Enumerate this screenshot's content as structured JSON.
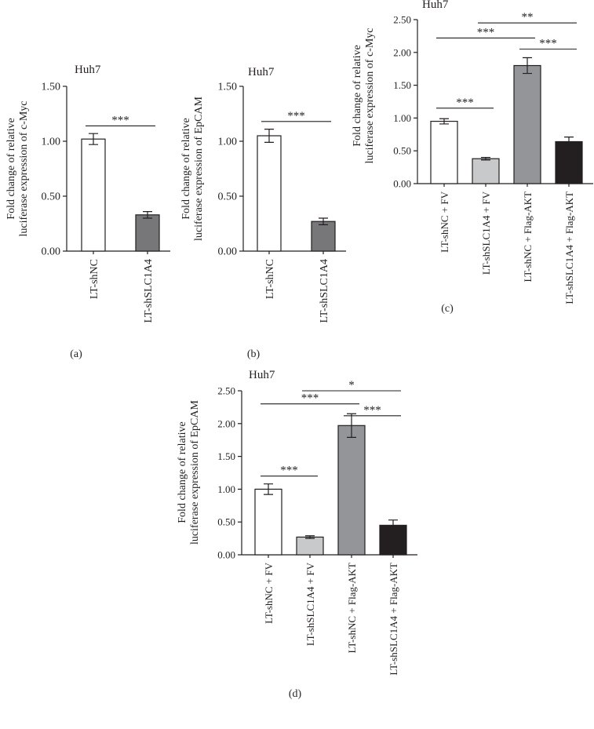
{
  "chart_data": [
    {
      "panel": "(a)",
      "type": "bar",
      "title": "Huh7",
      "ylabel": [
        "Fold change of relative",
        "luciferase expression of c-Myc"
      ],
      "xlabel": "",
      "ylim": [
        0,
        1.5
      ],
      "yticks": [
        0.0,
        0.5,
        1.0,
        1.5
      ],
      "ytick_labels": [
        "0.00",
        "0.50",
        "1.00",
        "1.50"
      ],
      "grid": false,
      "legend": "none",
      "categories": [
        "LT-shNC",
        "LT-shSLC1A4"
      ],
      "values": [
        1.02,
        0.33
      ],
      "errors": [
        0.05,
        0.03
      ],
      "colors": [
        "#ffffff",
        "#77777a"
      ],
      "significance": [
        {
          "from": 0,
          "to": 1,
          "label": "***",
          "y": 1.14
        }
      ]
    },
    {
      "panel": "(b)",
      "type": "bar",
      "title": "Huh7",
      "ylabel": [
        "Fold change of relative",
        "luciferase expression of EpCAM"
      ],
      "xlabel": "",
      "ylim": [
        0,
        1.5
      ],
      "yticks": [
        0.0,
        0.5,
        1.0,
        1.5
      ],
      "ytick_labels": [
        "0.00",
        "0.50",
        "1.00",
        "1.50"
      ],
      "grid": false,
      "legend": "none",
      "categories": [
        "LT-shNC",
        "LT-shSLC1A4"
      ],
      "values": [
        1.05,
        0.27
      ],
      "errors": [
        0.06,
        0.03
      ],
      "colors": [
        "#ffffff",
        "#77777a"
      ],
      "significance": [
        {
          "from": 0,
          "to": 1,
          "label": "***",
          "y": 1.18
        }
      ]
    },
    {
      "panel": "(c)",
      "type": "bar",
      "title": "Huh7",
      "ylabel": [
        "Fold change of relative",
        "luciferase expression of c-Myc"
      ],
      "xlabel": "",
      "ylim": [
        0,
        2.5
      ],
      "yticks": [
        0.0,
        0.5,
        1.0,
        1.5,
        2.0,
        2.5
      ],
      "ytick_labels": [
        "0.00",
        "0.50",
        "1.00",
        "1.50",
        "2.00",
        "2.50"
      ],
      "grid": false,
      "legend": "none",
      "categories": [
        "LT-shNC + FV",
        "LT-shSLC1A4 + FV",
        "LT-shNC + Flag-AKT",
        "LT-shSLC1A4 + Flag-AKT"
      ],
      "values": [
        0.95,
        0.38,
        1.8,
        0.64
      ],
      "errors": [
        0.04,
        0.02,
        0.12,
        0.07
      ],
      "colors": [
        "#ffffff",
        "#c8c9cb",
        "#939598",
        "#231f20"
      ],
      "significance": [
        {
          "from": 0,
          "to": 1,
          "label": "***",
          "y": 1.15
        },
        {
          "from": 0,
          "to": 2,
          "label": "***",
          "y": 2.22
        },
        {
          "from": 2,
          "to": 3,
          "label": "***",
          "y": 2.05
        },
        {
          "from": 1,
          "to": 3,
          "label": "**",
          "y": 2.45
        }
      ]
    },
    {
      "panel": "(d)",
      "type": "bar",
      "title": "Huh7",
      "ylabel": [
        "Fold change of relative",
        "luciferase expression of EpCAM"
      ],
      "xlabel": "",
      "ylim": [
        0,
        2.5
      ],
      "yticks": [
        0.0,
        0.5,
        1.0,
        1.5,
        2.0,
        2.5
      ],
      "ytick_labels": [
        "0.00",
        "0.50",
        "1.00",
        "1.50",
        "2.00",
        "2.50"
      ],
      "grid": false,
      "legend": "none",
      "categories": [
        "LT-shNC + FV",
        "LT-shSLC1A4 + FV",
        "LT-shNC + Flag-AKT",
        "LT-shSLC1A4 + Flag-AKT"
      ],
      "values": [
        1.0,
        0.27,
        1.97,
        0.45
      ],
      "errors": [
        0.08,
        0.02,
        0.18,
        0.08
      ],
      "colors": [
        "#ffffff",
        "#c8c9cb",
        "#939598",
        "#231f20"
      ],
      "significance": [
        {
          "from": 0,
          "to": 1,
          "label": "***",
          "y": 1.2
        },
        {
          "from": 0,
          "to": 2,
          "label": "***",
          "y": 2.3
        },
        {
          "from": 2,
          "to": 3,
          "label": "***",
          "y": 2.12
        },
        {
          "from": 1,
          "to": 3,
          "label": "*",
          "y": 2.5
        }
      ]
    }
  ]
}
